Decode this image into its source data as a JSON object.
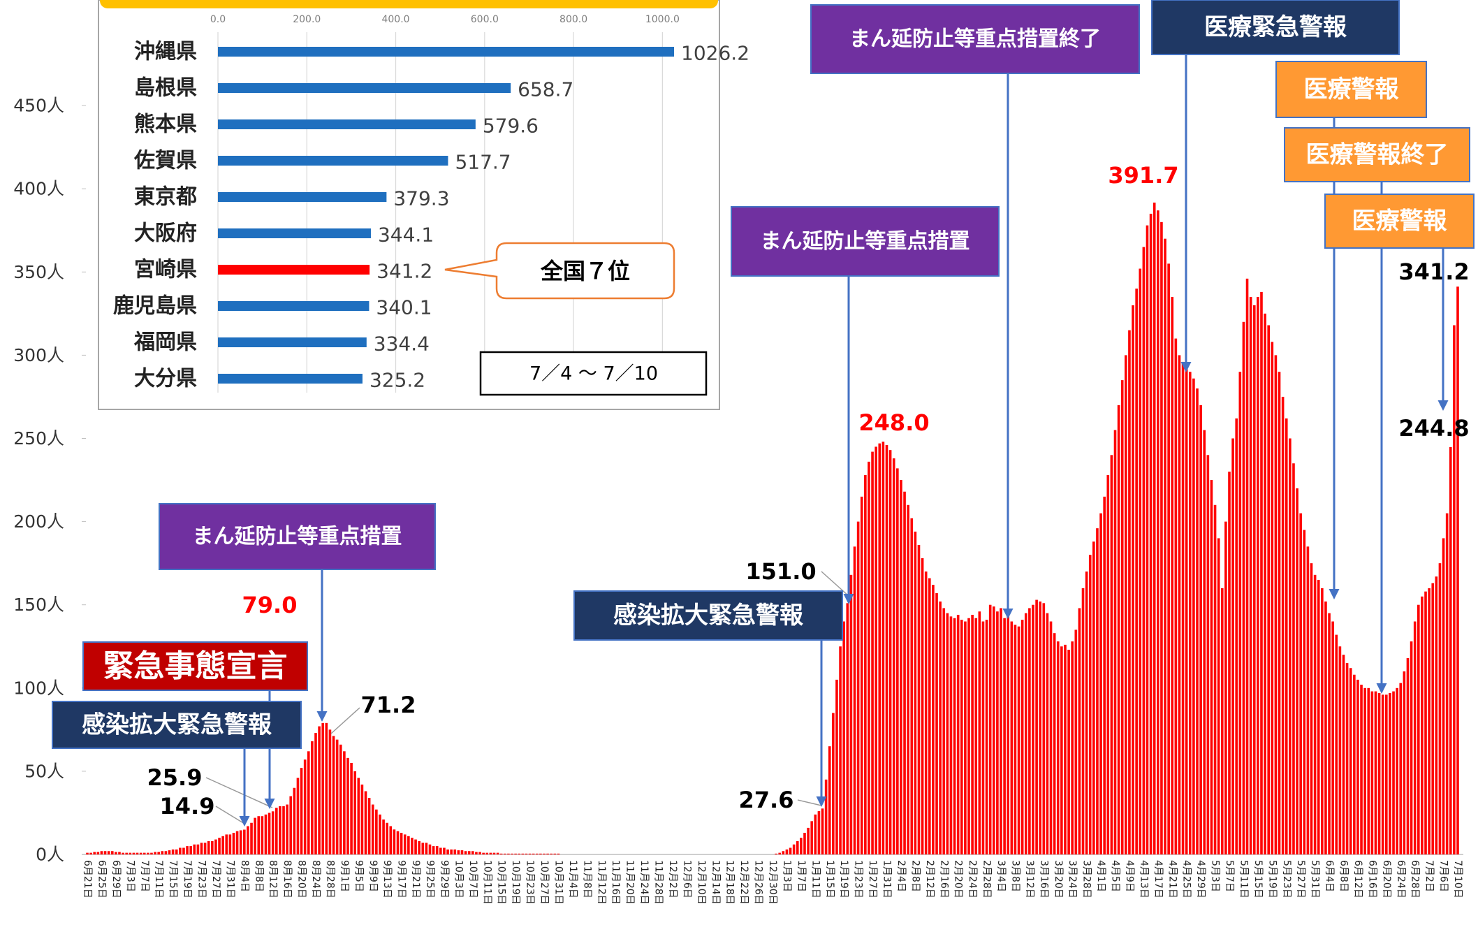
{
  "chart_data": [
    {
      "type": "bar",
      "color": "#ff0000",
      "ylim": [
        0,
        500
      ],
      "yticks": [
        {
          "value": 0,
          "label": "0人"
        },
        {
          "value": 50,
          "label": "50人"
        },
        {
          "value": 100,
          "label": "100人"
        },
        {
          "value": 150,
          "label": "150人"
        },
        {
          "value": 200,
          "label": "200人"
        },
        {
          "value": 250,
          "label": "250人"
        },
        {
          "value": 300,
          "label": "300人"
        },
        {
          "value": 350,
          "label": "350人"
        },
        {
          "value": 400,
          "label": "400人"
        },
        {
          "value": 450,
          "label": "450人"
        }
      ],
      "categories": [
        "6月21日",
        null,
        null,
        null,
        "6月25日",
        null,
        null,
        null,
        "6月29日",
        null,
        null,
        null,
        "7月3日",
        null,
        null,
        null,
        "7月7日",
        null,
        null,
        null,
        "7月11日",
        null,
        null,
        null,
        "7月15日",
        null,
        null,
        null,
        "7月19日",
        null,
        null,
        null,
        "7月23日",
        null,
        null,
        null,
        "7月27日",
        null,
        null,
        null,
        "7月31日",
        null,
        null,
        null,
        "8月4日",
        null,
        null,
        null,
        "8月8日",
        null,
        null,
        null,
        "8月12日",
        null,
        null,
        null,
        "8月16日",
        null,
        null,
        null,
        "8月20日",
        null,
        null,
        null,
        "8月24日",
        null,
        null,
        null,
        "8月28日",
        null,
        null,
        null,
        "9月1日",
        null,
        null,
        null,
        "9月5日",
        null,
        null,
        null,
        "9月9日",
        null,
        null,
        null,
        "9月13日",
        null,
        null,
        null,
        "9月17日",
        null,
        null,
        null,
        "9月21日",
        null,
        null,
        null,
        "9月25日",
        null,
        null,
        null,
        "9月29日",
        null,
        null,
        null,
        "10月3日",
        null,
        null,
        null,
        "10月7日",
        null,
        null,
        null,
        "10月11日",
        null,
        null,
        null,
        "10月15日",
        null,
        null,
        null,
        "10月19日",
        null,
        null,
        null,
        "10月23日",
        null,
        null,
        null,
        "10月27日",
        null,
        null,
        null,
        "10月31日",
        null,
        null,
        null,
        "11月4日",
        null,
        null,
        null,
        "11月8日",
        null,
        null,
        null,
        "11月12日",
        null,
        null,
        null,
        "11月16日",
        null,
        null,
        null,
        "11月20日",
        null,
        null,
        null,
        "11月24日",
        null,
        null,
        null,
        "11月28日",
        null,
        null,
        null,
        "12月2日",
        null,
        null,
        null,
        "12月6日",
        null,
        null,
        null,
        "12月10日",
        null,
        null,
        null,
        "12月14日",
        null,
        null,
        null,
        "12月18日",
        null,
        null,
        null,
        "12月22日",
        null,
        null,
        null,
        "12月26日",
        null,
        null,
        null,
        "12月30日",
        null,
        null,
        null,
        "1月3日",
        null,
        null,
        null,
        "1月7日",
        null,
        null,
        null,
        "1月11日",
        null,
        null,
        null,
        "1月15日",
        null,
        null,
        null,
        "1月19日",
        null,
        null,
        null,
        "1月23日",
        null,
        null,
        null,
        "1月27日",
        null,
        null,
        null,
        "1月31日",
        null,
        null,
        null,
        "2月4日",
        null,
        null,
        null,
        "2月8日",
        null,
        null,
        null,
        "2月12日",
        null,
        null,
        null,
        "2月16日",
        null,
        null,
        null,
        "2月20日",
        null,
        null,
        null,
        "2月24日",
        null,
        null,
        null,
        "2月28日",
        null,
        null,
        null,
        "3月4日",
        null,
        null,
        null,
        "3月8日",
        null,
        null,
        null,
        "3月12日",
        null,
        null,
        null,
        "3月16日",
        null,
        null,
        null,
        "3月20日",
        null,
        null,
        null,
        "3月24日",
        null,
        null,
        null,
        "3月28日",
        null,
        null,
        null,
        "4月1日",
        null,
        null,
        null,
        "4月5日",
        null,
        null,
        null,
        "4月9日",
        null,
        null,
        null,
        "4月13日",
        null,
        null,
        null,
        "4月17日",
        null,
        null,
        null,
        "4月21日",
        null,
        null,
        null,
        "4月25日",
        null,
        null,
        null,
        "4月29日",
        null,
        null,
        null,
        "5月3日",
        null,
        null,
        null,
        "5月7日",
        null,
        null,
        null,
        "5月11日",
        null,
        null,
        null,
        "5月15日",
        null,
        null,
        null,
        "5月19日",
        null,
        null,
        null,
        "5月23日",
        null,
        null,
        null,
        "5月27日",
        null,
        null,
        null,
        "5月31日",
        null,
        null,
        null,
        "6月4日",
        null,
        null,
        null,
        "6月8日",
        null,
        null,
        null,
        "6月12日",
        null,
        null,
        null,
        "6月16日",
        null,
        null,
        null,
        "6月20日",
        null,
        null,
        null,
        "6月24日",
        null,
        null,
        null,
        "6月28日",
        null,
        null,
        null,
        "7月2日",
        null,
        null,
        null,
        "7月6日",
        null,
        null,
        null,
        "7月10日"
      ],
      "values": [
        1,
        1,
        1.5,
        1.5,
        2,
        2,
        2,
        2,
        1.5,
        1.5,
        1,
        1,
        1,
        1,
        1,
        1,
        1,
        1,
        1,
        1.5,
        1.5,
        2,
        2,
        2.5,
        3,
        3,
        4,
        4,
        5,
        5,
        6,
        6,
        7,
        7,
        8,
        8,
        9,
        10,
        11,
        12,
        12,
        13,
        14,
        14.5,
        14.9,
        17,
        19,
        22,
        23,
        23,
        24,
        25,
        25.9,
        28,
        29,
        29,
        30,
        35,
        40,
        46,
        52,
        57,
        62,
        68,
        73,
        77,
        79,
        79,
        75,
        71.2,
        69,
        66,
        62,
        58,
        55,
        50,
        46,
        42,
        38,
        34,
        30,
        27,
        24,
        21,
        19,
        17,
        15,
        14,
        13,
        12,
        11,
        10,
        9,
        8,
        7,
        7,
        6,
        5,
        5,
        4,
        4,
        3,
        3,
        3,
        2.5,
        2.5,
        2,
        2,
        2,
        1.5,
        1.5,
        1,
        1,
        1,
        1,
        1,
        0.5,
        0.5,
        0.5,
        0.5,
        0.5,
        0.5,
        0.5,
        0.5,
        0.5,
        0.5,
        0.5,
        0.5,
        0.5,
        0.5,
        0.5,
        0.5,
        0.5,
        0,
        0,
        0,
        0,
        0,
        0,
        0,
        0,
        0,
        0,
        0,
        0,
        0,
        0,
        0,
        0,
        0,
        0,
        0,
        0,
        0,
        0,
        0,
        0,
        0,
        0,
        0,
        0,
        0,
        0,
        0,
        0,
        0,
        0,
        0,
        0,
        0,
        0,
        0,
        0,
        0,
        0,
        0,
        0,
        0,
        0,
        0,
        0,
        0,
        0,
        0,
        0,
        0,
        0,
        0,
        0,
        0,
        0,
        0,
        0,
        0.5,
        1,
        2,
        3,
        4,
        6,
        8,
        10,
        13,
        16,
        20,
        24,
        26,
        27.6,
        45,
        65,
        85,
        105,
        125,
        140,
        151,
        168,
        185,
        200,
        215,
        228,
        236,
        242,
        245,
        247,
        248,
        246,
        243,
        238,
        232,
        225,
        218,
        210,
        202,
        194,
        186,
        178,
        170,
        166,
        162,
        157,
        152,
        148,
        145,
        143,
        142,
        144,
        141,
        140,
        142,
        144,
        142,
        146,
        140,
        141,
        150,
        149,
        146,
        148,
        142,
        145,
        140,
        138,
        137,
        141,
        145,
        148,
        150,
        153,
        152,
        151,
        145,
        140,
        133,
        128,
        125,
        126,
        123,
        128,
        135,
        148,
        160,
        170,
        180,
        188,
        196,
        205,
        215,
        228,
        240,
        255,
        270,
        285,
        300,
        315,
        330,
        340,
        352,
        365,
        378,
        385,
        391.7,
        387,
        380,
        370,
        355,
        335,
        310,
        300,
        296,
        293,
        290,
        286,
        280,
        270,
        255,
        240,
        225,
        210,
        190,
        160,
        200,
        230,
        250,
        262,
        290,
        320,
        346,
        335,
        330,
        335,
        338,
        325,
        318,
        308,
        300,
        290,
        275,
        262,
        250,
        235,
        220,
        205,
        195,
        185,
        175,
        168,
        165,
        160,
        152,
        145,
        140,
        132,
        125,
        120,
        115,
        112,
        108,
        105,
        102,
        100,
        100,
        98,
        98,
        97,
        96,
        96,
        97,
        98,
        100,
        103,
        110,
        118,
        128,
        140,
        150,
        155,
        158,
        160,
        163,
        167,
        175,
        190,
        205,
        244.8,
        318,
        341.2
      ],
      "value_labels": [
        null,
        null,
        null,
        null,
        null,
        null,
        null,
        null,
        null,
        null,
        null,
        null,
        null,
        null,
        null,
        null,
        null,
        null,
        null,
        null,
        null,
        null,
        null,
        null,
        null,
        null,
        null,
        null,
        null,
        null,
        null,
        null,
        null,
        null,
        null,
        null,
        null,
        null,
        null,
        null,
        null,
        null,
        null,
        null,
        "14.9",
        null,
        null,
        null,
        null,
        null,
        null,
        null,
        "25.9",
        null,
        null,
        null,
        null,
        null,
        null,
        null,
        null,
        null,
        null,
        null,
        null,
        null,
        "79.0",
        null,
        null,
        "71.2",
        null,
        null,
        null,
        null,
        null,
        null,
        null,
        null,
        null,
        null,
        null,
        null,
        null,
        null,
        null,
        null,
        null,
        null,
        null,
        null,
        null,
        null,
        null,
        null,
        null,
        null,
        null,
        null,
        null,
        null,
        null,
        null,
        null,
        null,
        null,
        null,
        null,
        null,
        null,
        null,
        null,
        null,
        null,
        null,
        null,
        null,
        null,
        null,
        null,
        null,
        null,
        null,
        null,
        null,
        null,
        null,
        null,
        null,
        null,
        null,
        null,
        null,
        null,
        null,
        null,
        null,
        null,
        null,
        null,
        null,
        null,
        null,
        null,
        null,
        null,
        null,
        null,
        null,
        null,
        null,
        null,
        null,
        null,
        null,
        null,
        null,
        null,
        null,
        null,
        null,
        null,
        null,
        null,
        null,
        null,
        null,
        null,
        null,
        null,
        null,
        null,
        null,
        null,
        null,
        null,
        null,
        null,
        null,
        null,
        null,
        null,
        null,
        null,
        null,
        null,
        null,
        null,
        null,
        null,
        null,
        null,
        null,
        null,
        null,
        null,
        null,
        null,
        null,
        null,
        null,
        null,
        null,
        null,
        null,
        null,
        null,
        "27.6",
        null,
        null,
        null,
        null,
        null,
        null,
        "151.0",
        null,
        null,
        null,
        null,
        null,
        null,
        null,
        null,
        null,
        "248.0",
        null,
        null,
        null,
        null,
        null,
        null,
        null,
        null,
        null,
        null,
        null,
        null,
        null,
        null,
        null,
        null,
        null,
        null,
        null,
        null,
        null,
        null,
        null,
        null,
        null,
        null,
        null,
        null,
        null,
        null,
        null,
        null,
        null,
        null,
        null,
        null,
        null,
        null,
        null,
        null,
        null,
        null,
        null,
        null,
        null,
        null,
        null,
        null,
        null,
        null,
        null,
        null,
        null,
        null,
        null,
        null,
        null,
        null,
        null,
        null,
        null,
        null,
        null,
        null,
        null,
        null,
        null,
        null,
        null,
        null,
        null,
        null,
        null,
        null,
        null,
        "391.7",
        null,
        null,
        null,
        null,
        null,
        null,
        null,
        null,
        null,
        null,
        null,
        null,
        null,
        null,
        null,
        null,
        null,
        null,
        null,
        null,
        null,
        null,
        null,
        null,
        null,
        null,
        null,
        null,
        null,
        null,
        null,
        null,
        null,
        null,
        null,
        null,
        null,
        null,
        null,
        null,
        null,
        null,
        null,
        null,
        null,
        null,
        null,
        null,
        null,
        null,
        null,
        null,
        null,
        null,
        null,
        null,
        null,
        null,
        null,
        null,
        null,
        null,
        null,
        null,
        null,
        null,
        null,
        null,
        null,
        null,
        null,
        null,
        null,
        null,
        null,
        null,
        null,
        null,
        null,
        null,
        null,
        null,
        "244.8",
        null,
        "341.2"
      ],
      "annotations": [
        {
          "text": "緊急事態宣言",
          "color": "#c00000"
        },
        {
          "text": "感染拡大緊急警報",
          "color": "#1f3864"
        },
        {
          "text": "まん延防止等重点措置",
          "color": "#7030a0"
        },
        {
          "text": "感染拡大緊急警報",
          "color": "#1f3864"
        },
        {
          "text": "まん延防止等重点措置",
          "color": "#7030a0"
        },
        {
          "text": "まん延防止等重点措置終了",
          "color": "#7030a0"
        },
        {
          "text": "医療緊急警報",
          "color": "#1f3864"
        },
        {
          "text": "医療警報",
          "color": "#ff9933"
        },
        {
          "text": "医療警報終了",
          "color": "#ff9933"
        },
        {
          "text": "医療警報",
          "color": "#ff9933"
        }
      ]
    },
    {
      "type": "barh",
      "categories": [
        "沖縄県",
        "島根県",
        "熊本県",
        "佐賀県",
        "東京都",
        "大阪府",
        "宮崎県",
        "鹿児島県",
        "福岡県",
        "大分県"
      ],
      "values": [
        1026.2,
        658.7,
        579.6,
        517.7,
        379.3,
        344.1,
        341.2,
        340.1,
        334.4,
        325.2
      ],
      "colors": [
        "#1f6fbf",
        "#1f6fbf",
        "#1f6fbf",
        "#1f6fbf",
        "#1f6fbf",
        "#1f6fbf",
        "#ff0000",
        "#1f6fbf",
        "#1f6fbf",
        "#1f6fbf"
      ],
      "xlim": [
        0,
        1100
      ],
      "xticks": [
        {
          "value": 0,
          "label": "0.0"
        },
        {
          "value": 200,
          "label": "200.0"
        },
        {
          "value": 400,
          "label": "400.0"
        },
        {
          "value": 600,
          "label": "600.0"
        },
        {
          "value": 800,
          "label": "800.0"
        },
        {
          "value": 1000,
          "label": "1000.0"
        }
      ],
      "grid": true,
      "callout": "全国７位",
      "period": "7／4 ～ 7／10"
    }
  ]
}
